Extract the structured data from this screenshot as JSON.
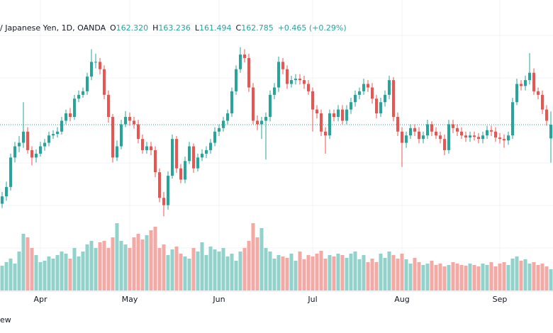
{
  "chart_data": {
    "type": "candlestick",
    "title": "/ Japanese Yen, 1D, OANDA",
    "ohlc_labels": [
      "O",
      "H",
      "L",
      "C"
    ],
    "ohlc_values": [
      "162.320",
      "163.236",
      "161.494",
      "162.785"
    ],
    "change": "+0.465 (+0.29%)",
    "footer": "ew",
    "up_color": "#26a69a",
    "down_color": "#ef5350",
    "volume_up_color": "#92d2cb",
    "volume_down_color": "#f5a9a5",
    "price_line": true,
    "ylim": [
      159.8,
      166.3
    ],
    "categories": [
      null,
      null,
      null,
      null,
      null,
      null,
      null,
      null,
      null,
      "Apr",
      null,
      null,
      null,
      null,
      null,
      null,
      null,
      null,
      null,
      null,
      null,
      null,
      null,
      null,
      null,
      null,
      null,
      null,
      null,
      null,
      "May",
      null,
      null,
      null,
      null,
      null,
      null,
      null,
      null,
      null,
      null,
      null,
      null,
      null,
      null,
      null,
      null,
      null,
      null,
      null,
      null,
      "Jun",
      null,
      null,
      null,
      null,
      null,
      null,
      null,
      null,
      null,
      null,
      null,
      null,
      null,
      null,
      null,
      null,
      null,
      null,
      null,
      null,
      null,
      "Jul",
      null,
      null,
      null,
      null,
      null,
      null,
      null,
      null,
      null,
      null,
      null,
      null,
      null,
      null,
      null,
      null,
      null,
      null,
      null,
      null,
      "Aug",
      null,
      null,
      null,
      null,
      null,
      null,
      null,
      null,
      null,
      null,
      null,
      null,
      null,
      null,
      null,
      null,
      null,
      null,
      null,
      null,
      null,
      null,
      "Sep",
      null,
      null,
      null,
      null,
      null,
      null,
      null,
      null,
      null,
      null,
      null,
      null
    ],
    "open": [
      160.1,
      160.35,
      160.67,
      161.67,
      162.05,
      162.17,
      162.55,
      161.92,
      161.67,
      161.8,
      162.05,
      162.17,
      162.42,
      162.47,
      162.55,
      162.92,
      163.17,
      163.05,
      163.67,
      163.8,
      163.92,
      164.42,
      164.92,
      164.92,
      164.67,
      163.8,
      163.05,
      161.67,
      162.05,
      162.8,
      163.05,
      162.92,
      162.8,
      162.3,
      161.92,
      162.05,
      161.92,
      161.17,
      160.3,
      160.05,
      161.05,
      162.3,
      161.3,
      160.92,
      161.55,
      162.05,
      161.3,
      161.67,
      161.8,
      161.92,
      162.17,
      162.55,
      162.67,
      162.92,
      163.17,
      163.92,
      164.67,
      165.17,
      165.05,
      164.05,
      162.92,
      162.8,
      162.92,
      163.05,
      163.8,
      164.05,
      164.92,
      164.67,
      164.17,
      164.3,
      164.35,
      164.3,
      164.17,
      163.92,
      163.3,
      163.17,
      162.55,
      162.42,
      163.17,
      163.05,
      163.3,
      162.92,
      163.3,
      163.55,
      163.8,
      163.92,
      164.17,
      164.05,
      163.67,
      163.17,
      163.55,
      163.8,
      164.3,
      163.05,
      162.55,
      162.17,
      162.42,
      162.67,
      162.55,
      162.3,
      162.42,
      162.8,
      162.55,
      162.42,
      162.3,
      161.92,
      162.8,
      162.67,
      162.55,
      162.42,
      162.35,
      162.42,
      162.37,
      162.3,
      162.42,
      162.6,
      162.55,
      162.35,
      162.3,
      162.25,
      162.42,
      163.55,
      164.17,
      164.1,
      164.3,
      164.55,
      163.92,
      163.8,
      163.3,
      162.32
    ],
    "high": [
      160.5,
      160.85,
      161.8,
      162.2,
      162.4,
      163.55,
      162.7,
      162.05,
      161.95,
      162.2,
      162.3,
      162.55,
      162.6,
      162.7,
      163.05,
      163.3,
      163.35,
      163.8,
      163.95,
      164.05,
      164.55,
      165.35,
      165.2,
      165.05,
      164.8,
      163.95,
      163.15,
      162.25,
      162.95,
      163.25,
      163.2,
      163.05,
      162.95,
      162.45,
      162.2,
      162.2,
      162.05,
      161.3,
      160.5,
      161.2,
      162.45,
      162.4,
      161.45,
      161.7,
      162.2,
      162.15,
      161.8,
      161.95,
      162.05,
      162.3,
      162.7,
      162.8,
      163.05,
      163.3,
      164.05,
      164.8,
      165.42,
      165.35,
      165.2,
      164.2,
      163.1,
      163.05,
      163.2,
      163.95,
      164.2,
      165.1,
      165.05,
      164.8,
      164.45,
      164.5,
      164.5,
      164.45,
      164.3,
      164.05,
      163.45,
      163.3,
      162.7,
      163.3,
      163.3,
      163.45,
      163.45,
      163.45,
      163.7,
      163.95,
      164.05,
      164.35,
      164.3,
      164.2,
      163.8,
      163.7,
      163.95,
      164.45,
      164.4,
      163.2,
      162.7,
      162.55,
      162.8,
      162.8,
      162.7,
      162.55,
      162.95,
      162.9,
      162.7,
      162.55,
      162.45,
      162.95,
      162.95,
      162.8,
      162.7,
      162.55,
      162.55,
      162.55,
      162.5,
      162.55,
      162.75,
      162.75,
      162.7,
      162.5,
      162.45,
      162.55,
      163.7,
      164.35,
      164.3,
      164.45,
      165.22,
      164.7,
      164.05,
      163.95,
      163.45,
      163.236
    ],
    "low": [
      159.95,
      160.2,
      160.55,
      161.5,
      161.85,
      162.0,
      161.8,
      161.4,
      161.5,
      161.7,
      161.9,
      162.05,
      162.3,
      162.35,
      162.45,
      162.8,
      162.9,
      162.95,
      163.55,
      163.7,
      163.8,
      164.3,
      164.7,
      164.5,
      163.65,
      162.85,
      161.5,
      161.55,
      161.95,
      162.7,
      162.75,
      162.65,
      162.15,
      161.8,
      161.8,
      161.75,
      161.0,
      160.15,
      159.67,
      159.9,
      160.95,
      161.15,
      160.8,
      160.8,
      161.45,
      161.15,
      161.2,
      161.55,
      161.65,
      161.8,
      162.05,
      162.4,
      162.55,
      162.8,
      163.05,
      163.8,
      164.55,
      164.9,
      163.9,
      162.8,
      162.6,
      162.3,
      161.6,
      162.9,
      163.65,
      163.9,
      164.5,
      164.0,
      164.05,
      164.15,
      164.15,
      164.0,
      163.8,
      162.55,
      163.0,
      162.4,
      161.8,
      162.3,
      162.9,
      162.9,
      162.8,
      162.8,
      163.15,
      163.4,
      163.65,
      163.8,
      163.9,
      163.5,
      163.0,
      163.05,
      163.4,
      163.65,
      162.9,
      162.4,
      161.35,
      162.0,
      162.3,
      162.4,
      162.15,
      162.15,
      162.3,
      162.4,
      162.3,
      162.15,
      161.75,
      161.8,
      162.5,
      162.4,
      162.3,
      162.2,
      162.2,
      162.25,
      162.15,
      162.15,
      162.3,
      162.4,
      162.2,
      162.15,
      162.0,
      162.1,
      162.3,
      163.45,
      163.95,
      163.95,
      164.15,
      163.8,
      163.65,
      163.15,
      162.75,
      161.494
    ],
    "close": [
      160.35,
      160.67,
      161.67,
      162.05,
      162.17,
      162.55,
      161.92,
      161.67,
      161.8,
      162.05,
      162.17,
      162.42,
      162.47,
      162.55,
      162.92,
      163.17,
      163.05,
      163.67,
      163.8,
      163.92,
      164.42,
      164.92,
      164.92,
      164.67,
      163.8,
      163.05,
      161.67,
      162.05,
      162.8,
      163.05,
      162.92,
      162.8,
      162.3,
      161.92,
      162.05,
      161.92,
      161.17,
      160.3,
      160.05,
      161.05,
      162.3,
      161.3,
      160.92,
      161.55,
      162.05,
      161.3,
      161.67,
      161.8,
      161.92,
      162.17,
      162.55,
      162.67,
      162.92,
      163.17,
      163.92,
      164.67,
      165.17,
      165.05,
      164.05,
      162.92,
      162.8,
      162.92,
      163.05,
      163.8,
      164.05,
      164.92,
      164.67,
      164.17,
      164.3,
      164.35,
      164.3,
      164.17,
      163.92,
      163.3,
      163.17,
      162.55,
      162.42,
      163.17,
      163.05,
      163.3,
      162.92,
      163.3,
      163.55,
      163.8,
      163.92,
      164.17,
      164.05,
      163.67,
      163.17,
      163.55,
      163.8,
      164.3,
      163.05,
      162.55,
      162.17,
      162.42,
      162.67,
      162.55,
      162.3,
      162.42,
      162.8,
      162.55,
      162.42,
      162.3,
      161.92,
      162.8,
      162.67,
      162.55,
      162.42,
      162.35,
      162.42,
      162.37,
      162.3,
      162.42,
      162.6,
      162.55,
      162.35,
      162.3,
      162.25,
      162.42,
      163.55,
      164.17,
      164.1,
      164.3,
      164.55,
      163.92,
      163.8,
      163.3,
      162.92,
      162.785
    ],
    "volume": [
      35,
      40,
      45,
      38,
      55,
      80,
      75,
      60,
      50,
      40,
      42,
      48,
      45,
      50,
      55,
      52,
      45,
      60,
      48,
      55,
      65,
      70,
      60,
      68,
      70,
      60,
      75,
      95,
      70,
      65,
      60,
      75,
      80,
      72,
      78,
      85,
      90,
      60,
      65,
      50,
      58,
      62,
      52,
      48,
      45,
      60,
      55,
      68,
      50,
      62,
      58,
      55,
      60,
      48,
      52,
      42,
      55,
      60,
      70,
      95,
      75,
      88,
      60,
      55,
      45,
      50,
      48,
      46,
      52,
      42,
      55,
      44,
      50,
      48,
      52,
      56,
      45,
      50,
      48,
      52,
      50,
      46,
      52,
      55,
      44,
      50,
      40,
      45,
      40,
      52,
      46,
      55,
      50,
      45,
      52,
      44,
      38,
      46,
      40,
      36,
      38,
      42,
      36,
      38,
      34,
      36,
      40,
      38,
      36,
      35,
      38,
      36,
      34,
      38,
      36,
      40,
      34,
      38,
      40,
      36,
      45,
      48,
      42,
      44,
      38,
      40,
      36,
      38,
      34,
      30
    ]
  }
}
